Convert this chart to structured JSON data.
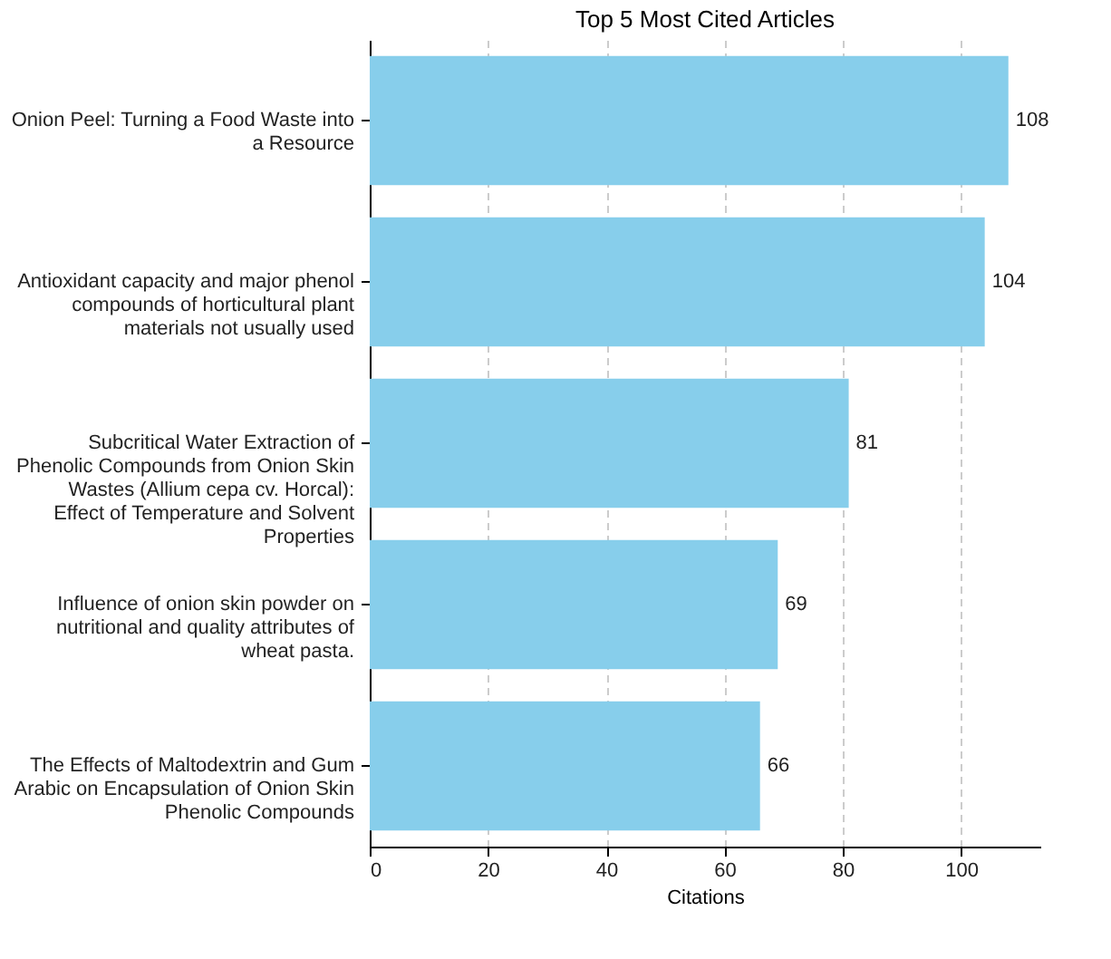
{
  "chart_data": {
    "type": "bar",
    "orientation": "horizontal",
    "title": "Top 5 Most Cited Articles",
    "xlabel": "Citations",
    "categories": [
      "Onion Peel: Turning a Food Waste into a Resource",
      "Antioxidant capacity and major phenol compounds of horticultural plant materials not usually used",
      "Subcritical Water Extraction of Phenolic Compounds from Onion Skin Wastes (Allium cepa cv. Horcal): Effect of Temperature and Solvent Properties",
      "Influence of onion skin powder on nutritional and quality attributes of wheat pasta.",
      "The Effects of Maltodextrin and Gum Arabic on Encapsulation of Onion Skin Phenolic Compounds"
    ],
    "values": [
      108,
      104,
      81,
      69,
      66
    ],
    "color": "#87ceeb",
    "data_labels": true,
    "xlim": [
      0,
      113.4
    ],
    "xticks": [
      0,
      20,
      40,
      60,
      80,
      100
    ],
    "grid": "x"
  }
}
